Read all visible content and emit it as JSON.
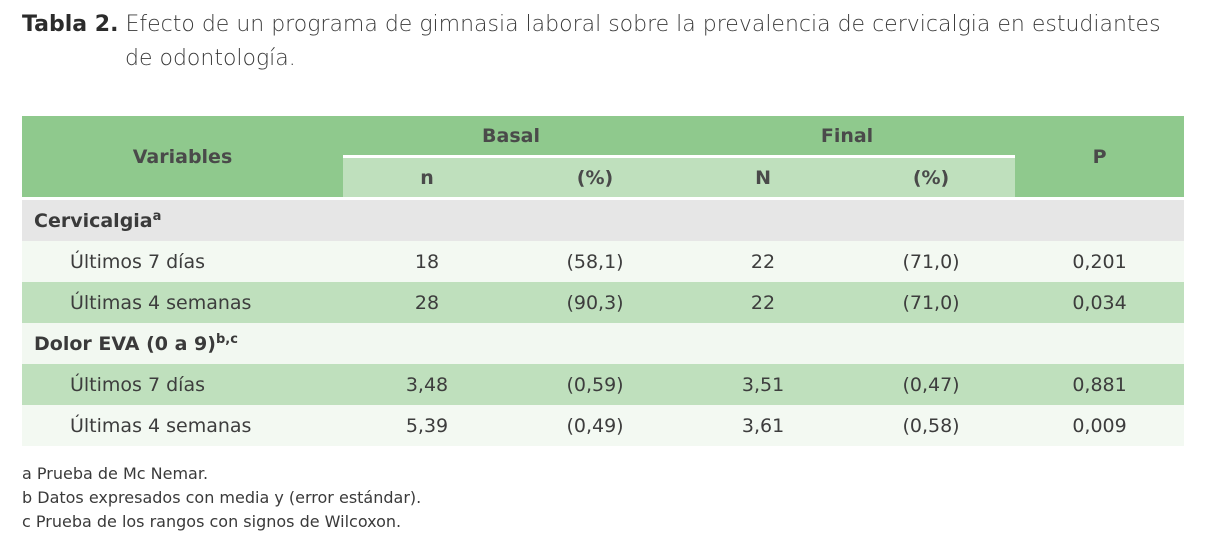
{
  "caption": {
    "label": "Tabla 2.",
    "text_line1": "Efecto de un programa de gimnasia laboral sobre la prevalencia de cervicalgia en estudiantes",
    "text_line2": "de odontología."
  },
  "table": {
    "headers": {
      "variables": "Variables",
      "basal": "Basal",
      "final": "Final",
      "p": "P",
      "basal_n": "n",
      "basal_pct": "(%)",
      "final_n": "N",
      "final_pct": "(%)"
    },
    "sections": [
      {
        "title": "Cervicalgia",
        "sup": "a",
        "rows": [
          {
            "label": "Últimos 7 días",
            "basal_n": "18",
            "basal_pct": "(58,1)",
            "final_n": "22",
            "final_pct": "(71,0)",
            "p": "0,201"
          },
          {
            "label": "Últimas 4 semanas",
            "basal_n": "28",
            "basal_pct": "(90,3)",
            "final_n": "22",
            "final_pct": "(71,0)",
            "p": "0,034"
          }
        ]
      },
      {
        "title": "Dolor EVA (0 a 9)",
        "sup": "b,c",
        "rows": [
          {
            "label": "Últimos 7 días",
            "basal_n": "3,48",
            "basal_pct": "(0,59)",
            "final_n": "3,51",
            "final_pct": "(0,47)",
            "p": "0,881"
          },
          {
            "label": "Últimas 4 semanas",
            "basal_n": "5,39",
            "basal_pct": "(0,49)",
            "final_n": "3,61",
            "final_pct": "(0,58)",
            "p": "0,009"
          }
        ]
      }
    ]
  },
  "notes": [
    "a Prueba de Mc Nemar.",
    "b Datos expresados con media y (error estándar).",
    "c Prueba de los rangos con signos de Wilcoxon."
  ],
  "colors": {
    "header_dark": "#8fc98d",
    "header_light": "#bfe0bd",
    "section_gray": "#e6e6e6",
    "row_light": "#f3f9f2"
  }
}
